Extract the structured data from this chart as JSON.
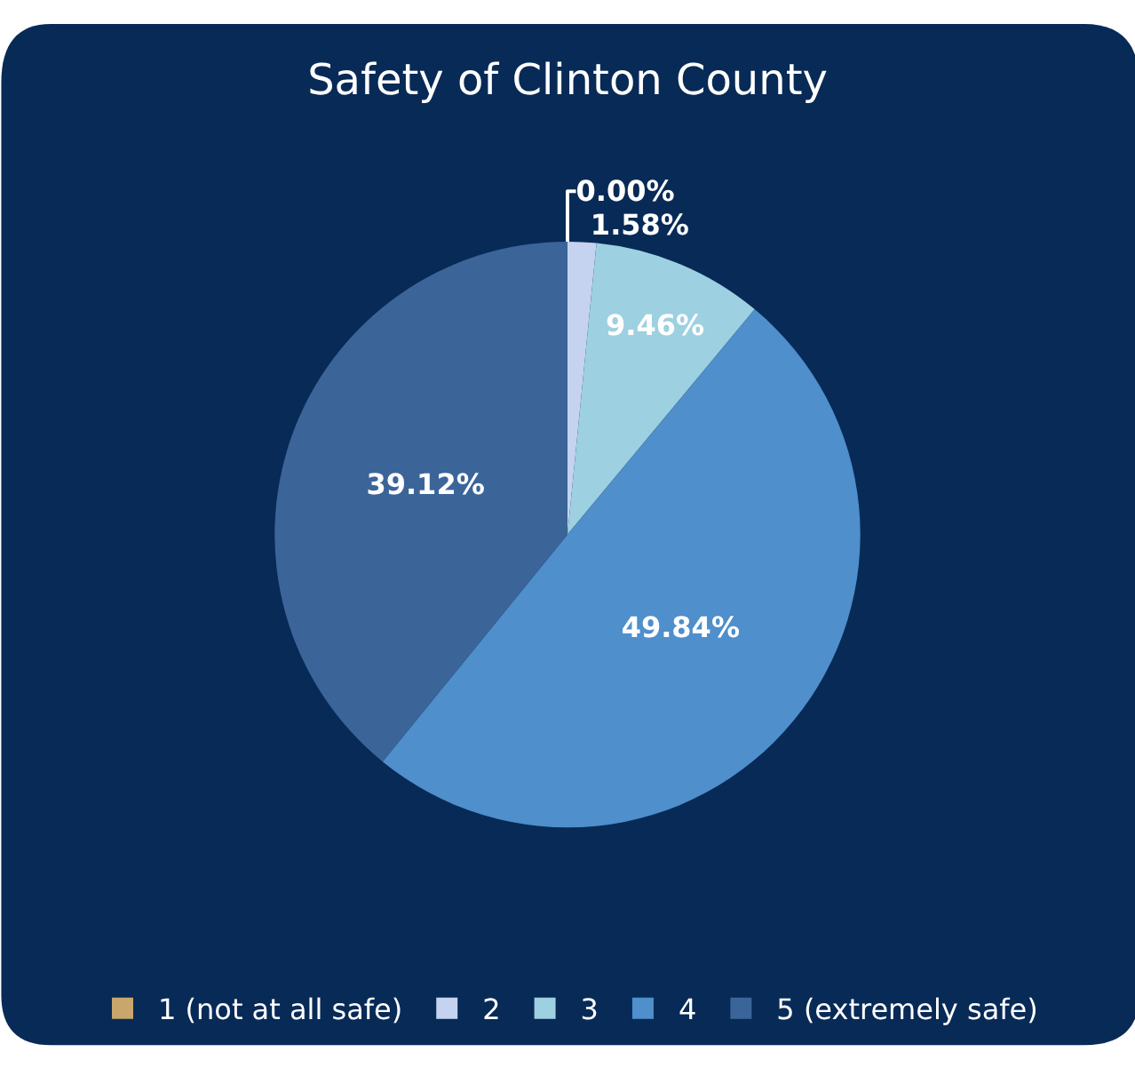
{
  "chart_data": {
    "type": "pie",
    "title": "Safety of Clinton County",
    "categories": [
      "1 (not at all safe)",
      "2",
      "3",
      "4",
      "5 (extremely safe)"
    ],
    "values": [
      0.0,
      1.58,
      9.46,
      49.84,
      39.12
    ],
    "colors": [
      "#c9a66b",
      "#c5d3f0",
      "#9dd0e0",
      "#4e8fcc",
      "#3b6599"
    ],
    "value_labels": [
      "0.00%",
      "1.58%",
      "9.46%",
      "49.84%",
      "39.12%"
    ],
    "legend": "bottom"
  }
}
